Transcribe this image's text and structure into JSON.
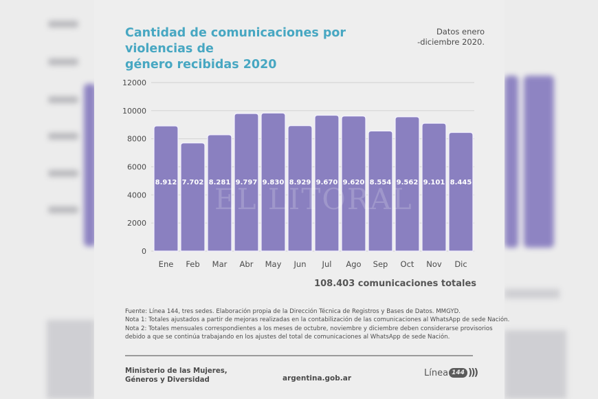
{
  "header": {
    "title_line1": "Cantidad de comunicaciones por violencias de",
    "title_line2": "género recibidas 2020",
    "dates_line1": "Datos enero",
    "dates_line2": "-diciembre 2020."
  },
  "colors": {
    "bar": "#8a80c0",
    "bar_outline": "#f4f2ff",
    "title": "#47a7c2",
    "grid": "#d6d6d6",
    "text": "#4a4a4a"
  },
  "chart_data": {
    "type": "bar",
    "title": "Cantidad de comunicaciones por violencias de género recibidas 2020",
    "xlabel": "",
    "ylabel": "",
    "categories": [
      "Ene",
      "Feb",
      "Mar",
      "Abr",
      "May",
      "Jun",
      "Jul",
      "Ago",
      "Sep",
      "Oct",
      "Nov",
      "Dic"
    ],
    "values": [
      8912,
      7702,
      8281,
      9797,
      9830,
      8929,
      9670,
      9620,
      8554,
      9562,
      9101,
      8445
    ],
    "data_labels": [
      "8.912",
      "7.702",
      "8.281",
      "9.797",
      "9.830",
      "8.929",
      "9.670",
      "9.620",
      "8.554",
      "9.562",
      "9.101",
      "8.445"
    ],
    "yticks": [
      0,
      2000,
      4000,
      6000,
      8000,
      10000,
      12000
    ],
    "ytick_labels": [
      "0",
      "2000",
      "4000",
      "6000",
      "8000",
      "10000",
      "12000"
    ],
    "ylim": [
      0,
      12000
    ],
    "grid": true,
    "legend": "none"
  },
  "total": "108.403 comunicaciones totales",
  "watermark": "EL LITORAL",
  "notes": [
    "Fuente: Línea 144, tres sedes. Elaboración propia de la Dirección Técnica de Registros y Bases de Datos. MMGYD.",
    "Nota 1: Totales ajustados a partir de mejoras realizadas en la contabilización de las comunicaciones al WhatsApp de sede Nación.",
    "Nota 2: Totales mensuales correspondientes a los meses de octubre, noviembre y diciembre deben considerarse provisorios",
    "debido a que se continúa trabajando en los ajustes del total de comunicaciones al WhatsApp de sede Nación."
  ],
  "footer": {
    "ministry_line1": "Ministerio de las Mujeres,",
    "ministry_line2": "Géneros y Diversidad",
    "site": "argentina.gob.ar",
    "logo_text": "Línea",
    "logo_number": "144",
    "logo_waves": ")))"
  }
}
